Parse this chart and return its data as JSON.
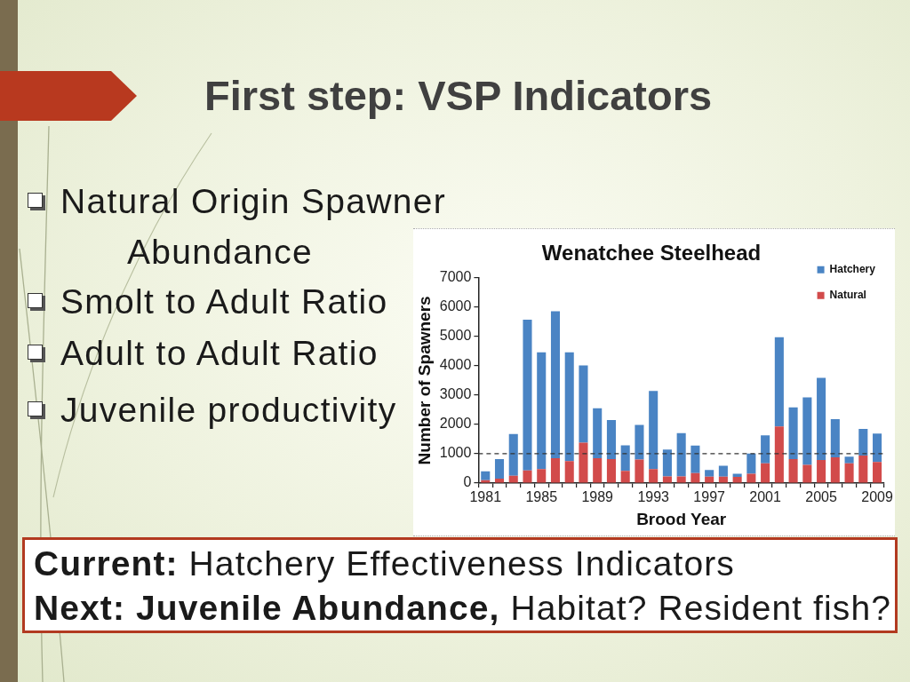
{
  "chart_data": {
    "type": "bar",
    "title": "Wenatchee Steelhead",
    "xlabel": "Brood Year",
    "ylabel": "Number of Spawners",
    "annotations": [
      "First step: VSP Indicators",
      "Natural Origin Spawner Abundance",
      "Smolt to Adult Ratio",
      "Adult to Adult Ratio",
      "Juvenile productivity",
      "Current:",
      "Hatchery Effectiveness Indicators",
      "Next: Juvenile Abundance,",
      "Habitat? Resident fish?"
    ],
    "categories": [
      "1981",
      null,
      null,
      null,
      "1985",
      null,
      null,
      null,
      "1989",
      null,
      null,
      null,
      "1993",
      null,
      null,
      null,
      "1997",
      null,
      null,
      null,
      "2001",
      null,
      null,
      null,
      "2005",
      null,
      null,
      null,
      "2009"
    ],
    "series": [
      {
        "name": "Natural",
        "color": "#d24b4b",
        "values": [
          100,
          150,
          250,
          430,
          480,
          850,
          750,
          1380,
          850,
          820,
          420,
          800,
          480,
          230,
          230,
          340,
          220,
          220,
          210,
          320,
          670,
          1930,
          820,
          620,
          790,
          880,
          670,
          940,
          720
        ]
      },
      {
        "name": "Hatchery",
        "color": "#4a84c4",
        "values": [
          300,
          670,
          1420,
          5140,
          3980,
          5010,
          3710,
          2630,
          1700,
          1330,
          870,
          1180,
          2660,
          910,
          1470,
          940,
          230,
          370,
          110,
          690,
          960,
          3040,
          1760,
          2300,
          2800,
          1300,
          230,
          910,
          970
        ]
      }
    ],
    "stacked": true,
    "ylim": [
      0,
      7000
    ],
    "yticks": [
      0,
      1000,
      2000,
      3000,
      4000,
      5000,
      6000,
      7000
    ],
    "ref_lines": [
      {
        "axis": "y",
        "value": 1000,
        "color": "#333333",
        "line_style": "dashed"
      }
    ],
    "grid": false,
    "legend": "top right"
  }
}
